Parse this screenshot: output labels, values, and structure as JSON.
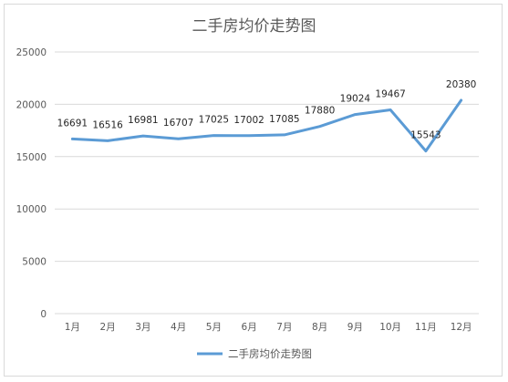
{
  "chart_data": {
    "type": "line",
    "title": "二手房均价走势图",
    "categories": [
      "1月",
      "2月",
      "3月",
      "4月",
      "5月",
      "6月",
      "7月",
      "8月",
      "9月",
      "10月",
      "11月",
      "12月"
    ],
    "series": [
      {
        "name": "二手房均价走势图",
        "values": [
          16691,
          16516,
          16981,
          16707,
          17025,
          17002,
          17085,
          17880,
          19024,
          19467,
          15543,
          20380
        ]
      }
    ],
    "ylim": [
      0,
      25000
    ],
    "yticks": [
      0,
      5000,
      10000,
      15000,
      20000,
      25000
    ],
    "grid": true,
    "legend": "bottom",
    "line_color": "#5B9BD5",
    "grid_color": "#d9d9d9"
  }
}
